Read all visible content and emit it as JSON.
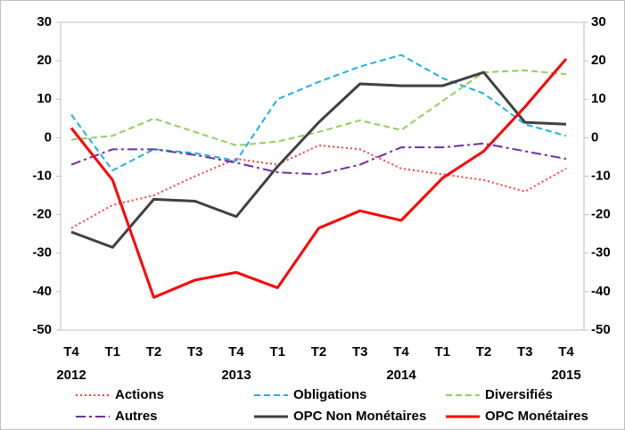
{
  "chart_data": {
    "type": "line",
    "categories": [
      [
        "T4",
        "2012"
      ],
      [
        "T1"
      ],
      [
        "T2"
      ],
      [
        "T3"
      ],
      [
        "T4",
        "2013"
      ],
      [
        "T1"
      ],
      [
        "T2"
      ],
      [
        "T3"
      ],
      [
        "T4",
        "2014"
      ],
      [
        "T1"
      ],
      [
        "T2"
      ],
      [
        "T3"
      ],
      [
        "T4",
        "2015"
      ]
    ],
    "ylim": [
      -50,
      30
    ],
    "yticks": [
      -50,
      -40,
      -30,
      -20,
      -10,
      0,
      10,
      20,
      30
    ],
    "y2lim": [
      -50,
      30
    ],
    "y2ticks": [
      -50,
      -40,
      -30,
      -20,
      -10,
      0,
      10,
      20,
      30
    ],
    "grid": false,
    "legend": "bottom",
    "series": [
      {
        "name": "Actions",
        "color": "#ff3b3b",
        "dash": "dotted",
        "width": 2,
        "values": [
          -23.5,
          -17.5,
          -15,
          -10,
          -5.5,
          -7,
          -2,
          -3,
          -8,
          -9.5,
          -11,
          -14,
          -8
        ]
      },
      {
        "name": "Obligations",
        "color": "#1fb0e6",
        "dash": "dashed",
        "width": 2,
        "values": [
          6,
          -8.5,
          -3,
          -4,
          -6,
          10,
          14.5,
          18.5,
          21.5,
          15.5,
          11.5,
          3.5,
          0.5
        ]
      },
      {
        "name": "Diversifiés",
        "color": "#8fcf5f",
        "dash": "dashed",
        "width": 2,
        "values": [
          -0.5,
          0.5,
          5,
          1.5,
          -2,
          -1,
          1.5,
          4.5,
          2,
          9.5,
          17,
          17.5,
          16.5
        ]
      },
      {
        "name": "Autres",
        "color": "#7030a0",
        "dash": "dashdot",
        "width": 2,
        "values": [
          -7,
          -3,
          -3,
          -4.5,
          -6.5,
          -9,
          -9.5,
          -7,
          -2.5,
          -2.5,
          -1.5,
          -3.5,
          -5.5
        ]
      },
      {
        "name": "OPC Non Monétaires",
        "color": "#404040",
        "dash": "solid",
        "width": 3,
        "values": [
          -24.5,
          -28.5,
          -16,
          -16.5,
          -20.5,
          -7.5,
          4,
          14,
          13.5,
          13.5,
          17,
          4,
          3.5
        ]
      },
      {
        "name": "OPC Monétaires",
        "color": "#ff0000",
        "dash": "solid",
        "width": 3,
        "values": [
          2.5,
          -11,
          -41.5,
          -37,
          -35,
          -39,
          -23.5,
          -19,
          -21.5,
          -10.5,
          -3.5,
          8,
          20.5
        ]
      }
    ]
  }
}
